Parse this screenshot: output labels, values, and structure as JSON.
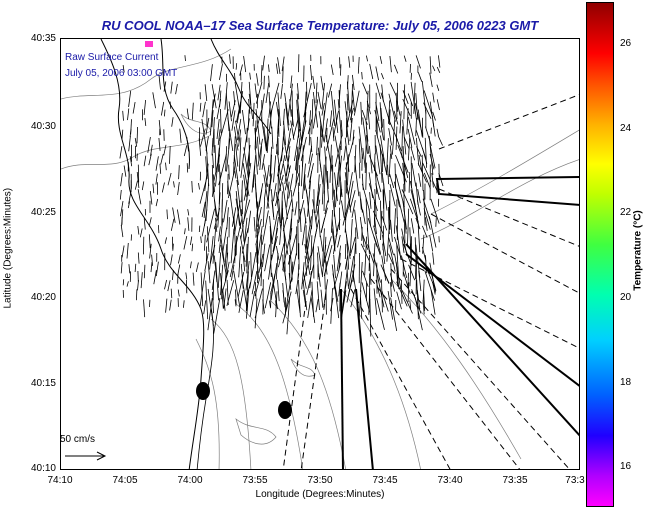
{
  "map": {
    "title": "RU COOL  NOAA–17  Sea Surface Temperature:  July 05, 2006 0223 GMT",
    "overlay_label_1": "Raw Surface Current",
    "overlay_label_2": "July 05, 2006 03:00 GMT",
    "scale_label": "50 cm/s",
    "xlabel": "Longitude (Degrees:Minutes)",
    "ylabel": "Latitude (Degrees:Minutes)",
    "x_ticks": [
      "74:10",
      "74:05",
      "74:00",
      "73:55",
      "73:50",
      "73:45",
      "73:40",
      "73:35",
      "73:3"
    ],
    "y_ticks": [
      "40:35",
      "40:30",
      "40:25",
      "40:20",
      "40:15",
      "40:10"
    ],
    "colors": {
      "title": "#1a1aa8",
      "coast": "#000000",
      "contours": "#7f7f7f",
      "vectors": "#000000"
    }
  },
  "colorbar": {
    "label": "Temperature (°C)",
    "ticks": [
      "26",
      "24",
      "22",
      "20",
      "18",
      "16"
    ],
    "range": [
      15.3,
      27.2
    ]
  }
}
